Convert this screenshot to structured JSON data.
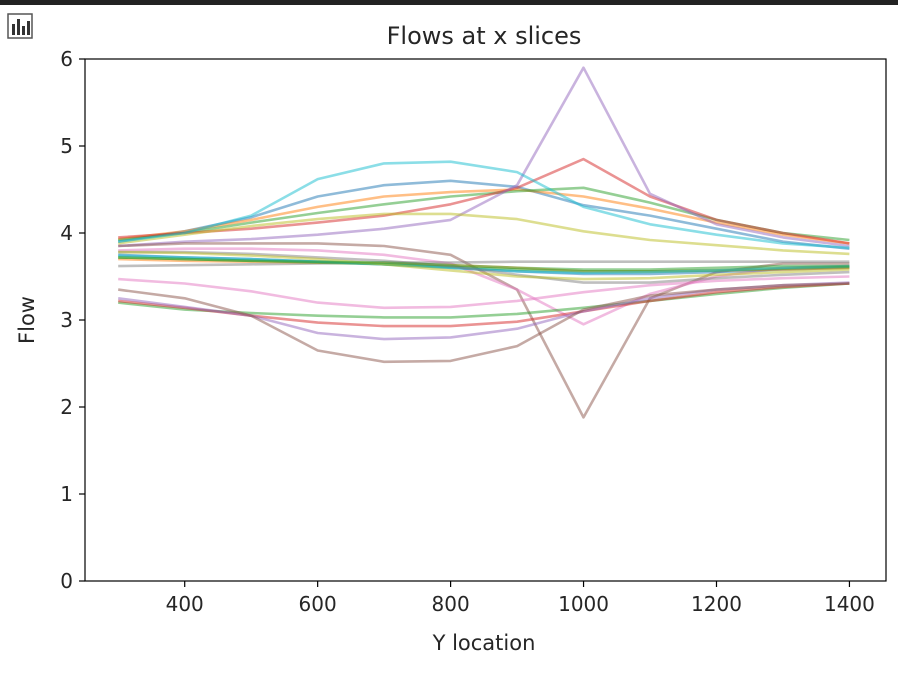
{
  "toolbar": {
    "output_icon": "bar-chart-icon"
  },
  "chart_data": {
    "type": "line",
    "title": "Flows at x slices",
    "xlabel": "Y location",
    "ylabel": "Flow",
    "xlim": [
      250,
      1455
    ],
    "ylim": [
      0,
      6
    ],
    "x_ticks": [
      "400",
      "600",
      "800",
      "1000",
      "1200",
      "1400"
    ],
    "y_ticks": [
      "0",
      "1",
      "2",
      "3",
      "4",
      "5",
      "6"
    ],
    "x": [
      300,
      400,
      500,
      600,
      700,
      800,
      900,
      1000,
      1100,
      1200,
      1300,
      1400
    ],
    "series": [
      {
        "color": "#1f77b4",
        "values": [
          3.9,
          4.02,
          4.18,
          4.42,
          4.55,
          4.6,
          4.53,
          4.32,
          4.2,
          4.05,
          3.9,
          3.82
        ]
      },
      {
        "color": "#ff7f0e",
        "values": [
          3.93,
          4.02,
          4.15,
          4.3,
          4.42,
          4.47,
          4.5,
          4.42,
          4.28,
          4.12,
          3.98,
          3.88
        ]
      },
      {
        "color": "#2ca02c",
        "values": [
          3.92,
          4.0,
          4.12,
          4.23,
          4.33,
          4.42,
          4.48,
          4.52,
          4.35,
          4.15,
          4.0,
          3.92
        ]
      },
      {
        "color": "#d62728",
        "values": [
          3.95,
          4.0,
          4.05,
          4.12,
          4.2,
          4.33,
          4.52,
          4.85,
          4.42,
          4.15,
          4.0,
          3.88
        ]
      },
      {
        "color": "#9467bd",
        "values": [
          3.85,
          3.9,
          3.93,
          3.98,
          4.05,
          4.15,
          4.55,
          5.9,
          4.45,
          4.1,
          3.95,
          3.85
        ]
      },
      {
        "color": "#8c564b",
        "values": [
          3.85,
          3.88,
          3.88,
          3.88,
          3.85,
          3.75,
          3.35,
          1.88,
          3.25,
          3.55,
          3.65,
          3.65
        ]
      },
      {
        "color": "#e377c2",
        "values": [
          3.8,
          3.82,
          3.82,
          3.8,
          3.75,
          3.65,
          3.35,
          2.95,
          3.3,
          3.5,
          3.6,
          3.62
        ]
      },
      {
        "color": "#7f7f7f",
        "values": [
          3.62,
          3.63,
          3.64,
          3.65,
          3.66,
          3.66,
          3.67,
          3.67,
          3.67,
          3.67,
          3.67,
          3.67
        ]
      },
      {
        "color": "#bcbd22",
        "values": [
          3.88,
          3.98,
          4.08,
          4.16,
          4.22,
          4.22,
          4.16,
          4.02,
          3.92,
          3.86,
          3.8,
          3.76
        ]
      },
      {
        "color": "#17becf",
        "values": [
          3.9,
          4.0,
          4.2,
          4.62,
          4.8,
          4.82,
          4.7,
          4.3,
          4.1,
          3.98,
          3.88,
          3.83
        ]
      },
      {
        "color": "#1f77b4",
        "values": [
          3.75,
          3.72,
          3.7,
          3.67,
          3.64,
          3.6,
          3.56,
          3.53,
          3.53,
          3.55,
          3.58,
          3.6
        ]
      },
      {
        "color": "#ff7f0e",
        "values": [
          3.7,
          3.68,
          3.67,
          3.66,
          3.65,
          3.63,
          3.6,
          3.56,
          3.56,
          3.57,
          3.58,
          3.6
        ]
      },
      {
        "color": "#2ca02c",
        "values": [
          3.72,
          3.7,
          3.68,
          3.66,
          3.64,
          3.61,
          3.58,
          3.56,
          3.56,
          3.57,
          3.59,
          3.61
        ]
      },
      {
        "color": "#17becf",
        "values": [
          3.74,
          3.72,
          3.7,
          3.67,
          3.64,
          3.6,
          3.56,
          3.54,
          3.55,
          3.57,
          3.6,
          3.62
        ]
      },
      {
        "color": "#2ca02c",
        "values": [
          3.2,
          3.12,
          3.08,
          3.05,
          3.03,
          3.03,
          3.07,
          3.14,
          3.22,
          3.3,
          3.37,
          3.42
        ]
      },
      {
        "color": "#d62728",
        "values": [
          3.22,
          3.14,
          3.05,
          2.97,
          2.93,
          2.93,
          2.98,
          3.1,
          3.22,
          3.32,
          3.38,
          3.42
        ]
      },
      {
        "color": "#9467bd",
        "values": [
          3.25,
          3.15,
          3.05,
          2.85,
          2.78,
          2.8,
          2.9,
          3.1,
          3.25,
          3.35,
          3.4,
          3.43
        ]
      },
      {
        "color": "#8c564b",
        "values": [
          3.35,
          3.25,
          3.05,
          2.65,
          2.52,
          2.53,
          2.7,
          3.12,
          3.28,
          3.35,
          3.4,
          3.42
        ]
      },
      {
        "color": "#e377c2",
        "values": [
          3.47,
          3.42,
          3.33,
          3.2,
          3.14,
          3.15,
          3.22,
          3.32,
          3.4,
          3.45,
          3.48,
          3.5
        ]
      },
      {
        "color": "#7f7f7f",
        "values": [
          3.78,
          3.78,
          3.76,
          3.72,
          3.68,
          3.62,
          3.52,
          3.43,
          3.43,
          3.48,
          3.52,
          3.55
        ]
      },
      {
        "color": "#bcbd22",
        "values": [
          3.78,
          3.77,
          3.74,
          3.7,
          3.64,
          3.57,
          3.5,
          3.47,
          3.48,
          3.52,
          3.55,
          3.58
        ]
      },
      {
        "color": "#2ca02c",
        "values": [
          3.72,
          3.7,
          3.68,
          3.67,
          3.66,
          3.63,
          3.6,
          3.58,
          3.58,
          3.6,
          3.62,
          3.62
        ]
      }
    ]
  }
}
